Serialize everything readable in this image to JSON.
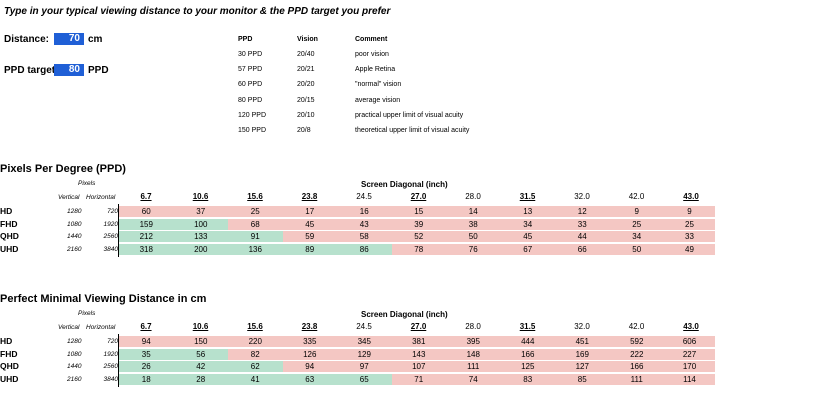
{
  "intro": "Type in your typical viewing distance to your monitor & the PPD target you prefer",
  "inputs": {
    "distance_label": "Distance:",
    "distance_value": "70",
    "distance_unit": "cm",
    "ppd_label": "PPD target:",
    "ppd_value": "80",
    "ppd_unit": "PPD"
  },
  "reference": {
    "headers": [
      "PPD",
      "Vision",
      "Comment"
    ],
    "rows": [
      [
        "30 PPD",
        "20/40",
        "poor vision"
      ],
      [
        "57 PPD",
        "20/21",
        "Apple Retina"
      ],
      [
        "60 PPD",
        "20/20",
        "\"normal\" vision"
      ],
      [
        "80 PPD",
        "20/15",
        "average vision"
      ],
      [
        "120 PPD",
        "20/10",
        "practical upper limit of visual acuity"
      ],
      [
        "150 PPD",
        "20/8",
        "theoretical upper limit of visual acuity"
      ]
    ]
  },
  "colors": {
    "input_bg": "#1f5fd6",
    "bad": "#f4c7c3",
    "good": "#b7e1cd"
  },
  "sizes": [
    "6.7",
    "10.6",
    "15.6",
    "23.8",
    "24.5",
    "27.0",
    "28.0",
    "31.5",
    "32.0",
    "42.0",
    "43.0"
  ],
  "sizes_bold": [
    true,
    true,
    true,
    true,
    false,
    true,
    false,
    true,
    false,
    false,
    true
  ],
  "resolutions": [
    {
      "name": "HD",
      "vertical": "1280",
      "horizontal": "720"
    },
    {
      "name": "FHD",
      "vertical": "1080",
      "horizontal": "1920"
    },
    {
      "name": "QHD",
      "vertical": "1440",
      "horizontal": "2560"
    },
    {
      "name": "UHD",
      "vertical": "2160",
      "horizontal": "3840"
    }
  ],
  "tables": [
    {
      "title": "Pixels Per Degree (PPD)",
      "pixels_label": "Pixels",
      "vertical_label": "Vertical",
      "horizontal_label": "Horizontal",
      "diagonal_label": "Screen Diagonal (inch)",
      "values": [
        [
          "60",
          "37",
          "25",
          "17",
          "16",
          "15",
          "14",
          "13",
          "12",
          "9",
          "9"
        ],
        [
          "159",
          "100",
          "68",
          "45",
          "43",
          "39",
          "38",
          "34",
          "33",
          "25",
          "25"
        ],
        [
          "212",
          "133",
          "91",
          "59",
          "58",
          "52",
          "50",
          "45",
          "44",
          "34",
          "33"
        ],
        [
          "318",
          "200",
          "136",
          "89",
          "86",
          "78",
          "76",
          "67",
          "66",
          "50",
          "49"
        ]
      ],
      "good": [
        [
          false,
          false,
          false,
          false,
          false,
          false,
          false,
          false,
          false,
          false,
          false
        ],
        [
          true,
          true,
          false,
          false,
          false,
          false,
          false,
          false,
          false,
          false,
          false
        ],
        [
          true,
          true,
          true,
          false,
          false,
          false,
          false,
          false,
          false,
          false,
          false
        ],
        [
          true,
          true,
          true,
          true,
          true,
          false,
          false,
          false,
          false,
          false,
          false
        ]
      ]
    },
    {
      "title": "Perfect Minimal Viewing Distance in cm",
      "pixels_label": "Pixels",
      "vertical_label": "Vertical",
      "horizontal_label": "Horizontal",
      "diagonal_label": "Screen Diagonal (inch)",
      "values": [
        [
          "94",
          "150",
          "220",
          "335",
          "345",
          "381",
          "395",
          "444",
          "451",
          "592",
          "606"
        ],
        [
          "35",
          "56",
          "82",
          "126",
          "129",
          "143",
          "148",
          "166",
          "169",
          "222",
          "227"
        ],
        [
          "26",
          "42",
          "62",
          "94",
          "97",
          "107",
          "111",
          "125",
          "127",
          "166",
          "170"
        ],
        [
          "18",
          "28",
          "41",
          "63",
          "65",
          "71",
          "74",
          "83",
          "85",
          "111",
          "114"
        ]
      ],
      "good": [
        [
          false,
          false,
          false,
          false,
          false,
          false,
          false,
          false,
          false,
          false,
          false
        ],
        [
          true,
          true,
          false,
          false,
          false,
          false,
          false,
          false,
          false,
          false,
          false
        ],
        [
          true,
          true,
          true,
          false,
          false,
          false,
          false,
          false,
          false,
          false,
          false
        ],
        [
          true,
          true,
          true,
          true,
          true,
          false,
          false,
          false,
          false,
          false,
          false
        ]
      ]
    }
  ]
}
